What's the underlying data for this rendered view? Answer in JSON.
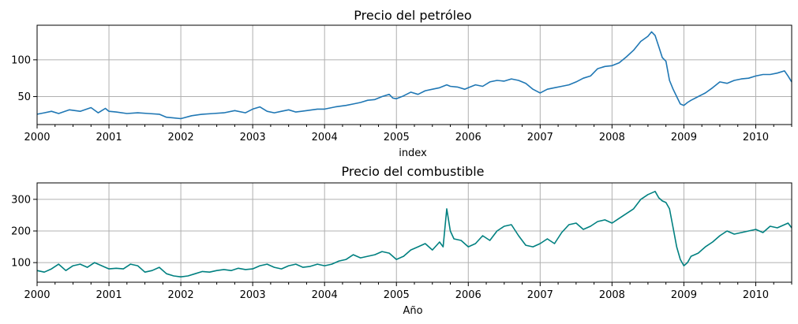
{
  "chart_data": [
    {
      "type": "line",
      "title": "Precio del petróleo",
      "xlabel": "index",
      "ylabel": "",
      "xlim": [
        2000.0,
        2010.5
      ],
      "ylim": [
        12,
        147
      ],
      "yticks": [
        50,
        100
      ],
      "xtick_labels": [
        "2000",
        "2001",
        "2002",
        "2003",
        "2004",
        "2005",
        "2006",
        "2007",
        "2008",
        "2009",
        "2010"
      ],
      "grid": true,
      "color": "#1f77b4",
      "series": [
        {
          "name": "petróleo",
          "x": [
            2000.0,
            2000.1,
            2000.2,
            2000.3,
            2000.45,
            2000.6,
            2000.75,
            2000.85,
            2000.95,
            2001.0,
            2001.1,
            2001.25,
            2001.4,
            2001.55,
            2001.7,
            2001.8,
            2001.9,
            2002.0,
            2002.15,
            2002.3,
            2002.45,
            2002.6,
            2002.75,
            2002.9,
            2003.0,
            2003.1,
            2003.2,
            2003.3,
            2003.4,
            2003.5,
            2003.6,
            2003.75,
            2003.9,
            2004.0,
            2004.15,
            2004.3,
            2004.4,
            2004.5,
            2004.6,
            2004.7,
            2004.8,
            2004.9,
            2004.95,
            2005.0,
            2005.1,
            2005.2,
            2005.3,
            2005.4,
            2005.5,
            2005.6,
            2005.7,
            2005.75,
            2005.85,
            2005.95,
            2006.0,
            2006.1,
            2006.2,
            2006.3,
            2006.4,
            2006.5,
            2006.6,
            2006.7,
            2006.8,
            2006.9,
            2007.0,
            2007.1,
            2007.2,
            2007.3,
            2007.4,
            2007.5,
            2007.6,
            2007.7,
            2007.8,
            2007.9,
            2008.0,
            2008.1,
            2008.2,
            2008.3,
            2008.4,
            2008.5,
            2008.55,
            2008.6,
            2008.65,
            2008.7,
            2008.75,
            2008.8,
            2008.85,
            2008.9,
            2008.95,
            2009.0,
            2009.05,
            2009.1,
            2009.2,
            2009.3,
            2009.4,
            2009.5,
            2009.6,
            2009.7,
            2009.8,
            2009.9,
            2010.0,
            2010.1,
            2010.2,
            2010.3,
            2010.4,
            2010.45,
            2010.5
          ],
          "values": [
            26,
            28,
            30,
            27,
            32,
            30,
            35,
            28,
            34,
            30,
            29,
            27,
            28,
            27,
            26,
            22,
            21,
            20,
            24,
            26,
            27,
            28,
            31,
            28,
            33,
            36,
            30,
            28,
            30,
            32,
            29,
            31,
            33,
            33,
            36,
            38,
            40,
            42,
            45,
            46,
            50,
            53,
            48,
            47,
            51,
            56,
            53,
            58,
            60,
            62,
            66,
            64,
            63,
            60,
            62,
            66,
            64,
            70,
            72,
            71,
            74,
            72,
            68,
            60,
            55,
            60,
            62,
            64,
            66,
            70,
            75,
            78,
            88,
            91,
            92,
            96,
            104,
            113,
            125,
            132,
            138,
            133,
            118,
            103,
            98,
            72,
            60,
            50,
            40,
            38,
            42,
            45,
            50,
            55,
            62,
            70,
            68,
            72,
            74,
            75,
            78,
            80,
            80,
            82,
            85,
            78,
            70
          ]
        }
      ]
    },
    {
      "type": "line",
      "title": "Precio del combustible",
      "xlabel": "Año",
      "ylabel": "",
      "xlim": [
        2000.0,
        2010.5
      ],
      "ylim": [
        38,
        352
      ],
      "yticks": [
        100,
        200,
        300
      ],
      "xtick_labels": [
        "2000",
        "2001",
        "2002",
        "2003",
        "2004",
        "2005",
        "2006",
        "2007",
        "2008",
        "2009",
        "2010"
      ],
      "grid": true,
      "color": "#008080",
      "series": [
        {
          "name": "combustible",
          "x": [
            2000.0,
            2000.1,
            2000.2,
            2000.3,
            2000.4,
            2000.5,
            2000.6,
            2000.7,
            2000.8,
            2000.9,
            2001.0,
            2001.1,
            2001.2,
            2001.3,
            2001.4,
            2001.5,
            2001.6,
            2001.7,
            2001.8,
            2001.9,
            2002.0,
            2002.1,
            2002.2,
            2002.3,
            2002.4,
            2002.5,
            2002.6,
            2002.7,
            2002.8,
            2002.9,
            2003.0,
            2003.1,
            2003.2,
            2003.3,
            2003.4,
            2003.5,
            2003.6,
            2003.7,
            2003.8,
            2003.9,
            2004.0,
            2004.1,
            2004.2,
            2004.3,
            2004.4,
            2004.5,
            2004.6,
            2004.7,
            2004.8,
            2004.9,
            2005.0,
            2005.1,
            2005.2,
            2005.3,
            2005.4,
            2005.5,
            2005.6,
            2005.65,
            2005.7,
            2005.75,
            2005.8,
            2005.9,
            2006.0,
            2006.1,
            2006.2,
            2006.3,
            2006.4,
            2006.5,
            2006.6,
            2006.7,
            2006.8,
            2006.9,
            2007.0,
            2007.1,
            2007.2,
            2007.3,
            2007.4,
            2007.5,
            2007.6,
            2007.7,
            2007.8,
            2007.9,
            2008.0,
            2008.1,
            2008.2,
            2008.3,
            2008.4,
            2008.5,
            2008.55,
            2008.6,
            2008.65,
            2008.7,
            2008.75,
            2008.8,
            2008.85,
            2008.9,
            2008.95,
            2009.0,
            2009.05,
            2009.1,
            2009.2,
            2009.3,
            2009.4,
            2009.5,
            2009.6,
            2009.7,
            2009.8,
            2009.9,
            2010.0,
            2010.1,
            2010.2,
            2010.3,
            2010.4,
            2010.45,
            2010.5
          ],
          "values": [
            75,
            70,
            80,
            95,
            75,
            90,
            95,
            85,
            100,
            90,
            80,
            82,
            80,
            95,
            90,
            70,
            75,
            85,
            65,
            58,
            55,
            58,
            65,
            72,
            70,
            75,
            78,
            75,
            82,
            78,
            80,
            90,
            95,
            85,
            80,
            90,
            95,
            85,
            88,
            95,
            90,
            95,
            105,
            110,
            125,
            115,
            120,
            125,
            135,
            130,
            110,
            120,
            140,
            150,
            160,
            140,
            165,
            150,
            270,
            200,
            175,
            170,
            150,
            160,
            185,
            170,
            200,
            215,
            220,
            185,
            155,
            150,
            160,
            175,
            160,
            195,
            220,
            225,
            205,
            215,
            230,
            235,
            225,
            240,
            255,
            270,
            300,
            315,
            320,
            325,
            305,
            295,
            290,
            270,
            210,
            150,
            110,
            90,
            100,
            120,
            130,
            150,
            165,
            185,
            200,
            190,
            195,
            200,
            205,
            195,
            215,
            210,
            220,
            225,
            210
          ]
        }
      ]
    }
  ]
}
